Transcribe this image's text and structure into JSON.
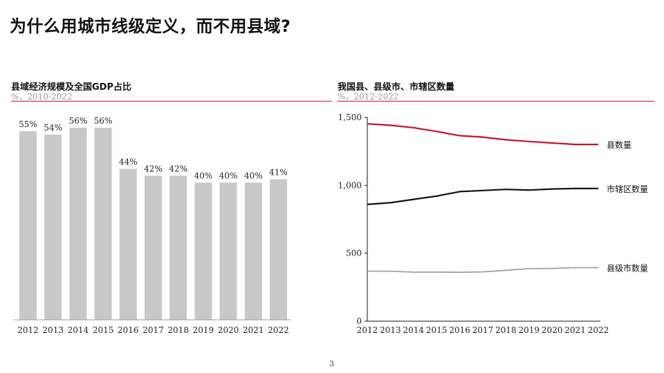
{
  "page": {
    "title": "为什么用城市线级定义，而不用县域?",
    "page_number": "3"
  },
  "colors": {
    "accent_red": "#c8102e",
    "bar_gray": "#c8c8c8",
    "line_black": "#111111",
    "line_gray": "#a0a0a0"
  },
  "left_panel": {
    "title": "县域经济规模及全国GDP占比",
    "subtitle": "%，2010-2022"
  },
  "right_panel": {
    "title": "我国县、县级市、市辖区数量",
    "subtitle": "%，2012-2022"
  },
  "chart_data": [
    {
      "type": "bar",
      "categories": [
        "2012",
        "2013",
        "2014",
        "2015",
        "2016",
        "2017",
        "2018",
        "2019",
        "2020",
        "2021",
        "2022"
      ],
      "values": [
        55,
        54,
        56,
        56,
        44,
        42,
        42,
        40,
        40,
        40,
        41
      ],
      "value_labels": [
        "55%",
        "54%",
        "56%",
        "56%",
        "44%",
        "42%",
        "42%",
        "40%",
        "40%",
        "40%",
        "41%"
      ],
      "ylim": [
        0,
        56
      ],
      "grid": false
    },
    {
      "type": "line",
      "x": [
        "2012",
        "2013",
        "2014",
        "2015",
        "2016",
        "2017",
        "2018",
        "2019",
        "2020",
        "2021",
        "2022"
      ],
      "yticks": [
        "0",
        "500",
        "1,000",
        "1,500"
      ],
      "ylim": [
        0,
        1500
      ],
      "grid": false,
      "series": [
        {
          "name": "县数量",
          "color": "#c8102e",
          "values": [
            1453,
            1442,
            1425,
            1397,
            1366,
            1355,
            1335,
            1323,
            1312,
            1301,
            1301
          ]
        },
        {
          "name": "市辖区数量",
          "color": "#111111",
          "values": [
            860,
            872,
            897,
            921,
            954,
            962,
            970,
            965,
            973,
            977,
            977
          ]
        },
        {
          "name": "县级市数量",
          "color": "#a0a0a0",
          "values": [
            368,
            368,
            361,
            361,
            360,
            363,
            375,
            387,
            388,
            394,
            394
          ]
        }
      ]
    }
  ]
}
